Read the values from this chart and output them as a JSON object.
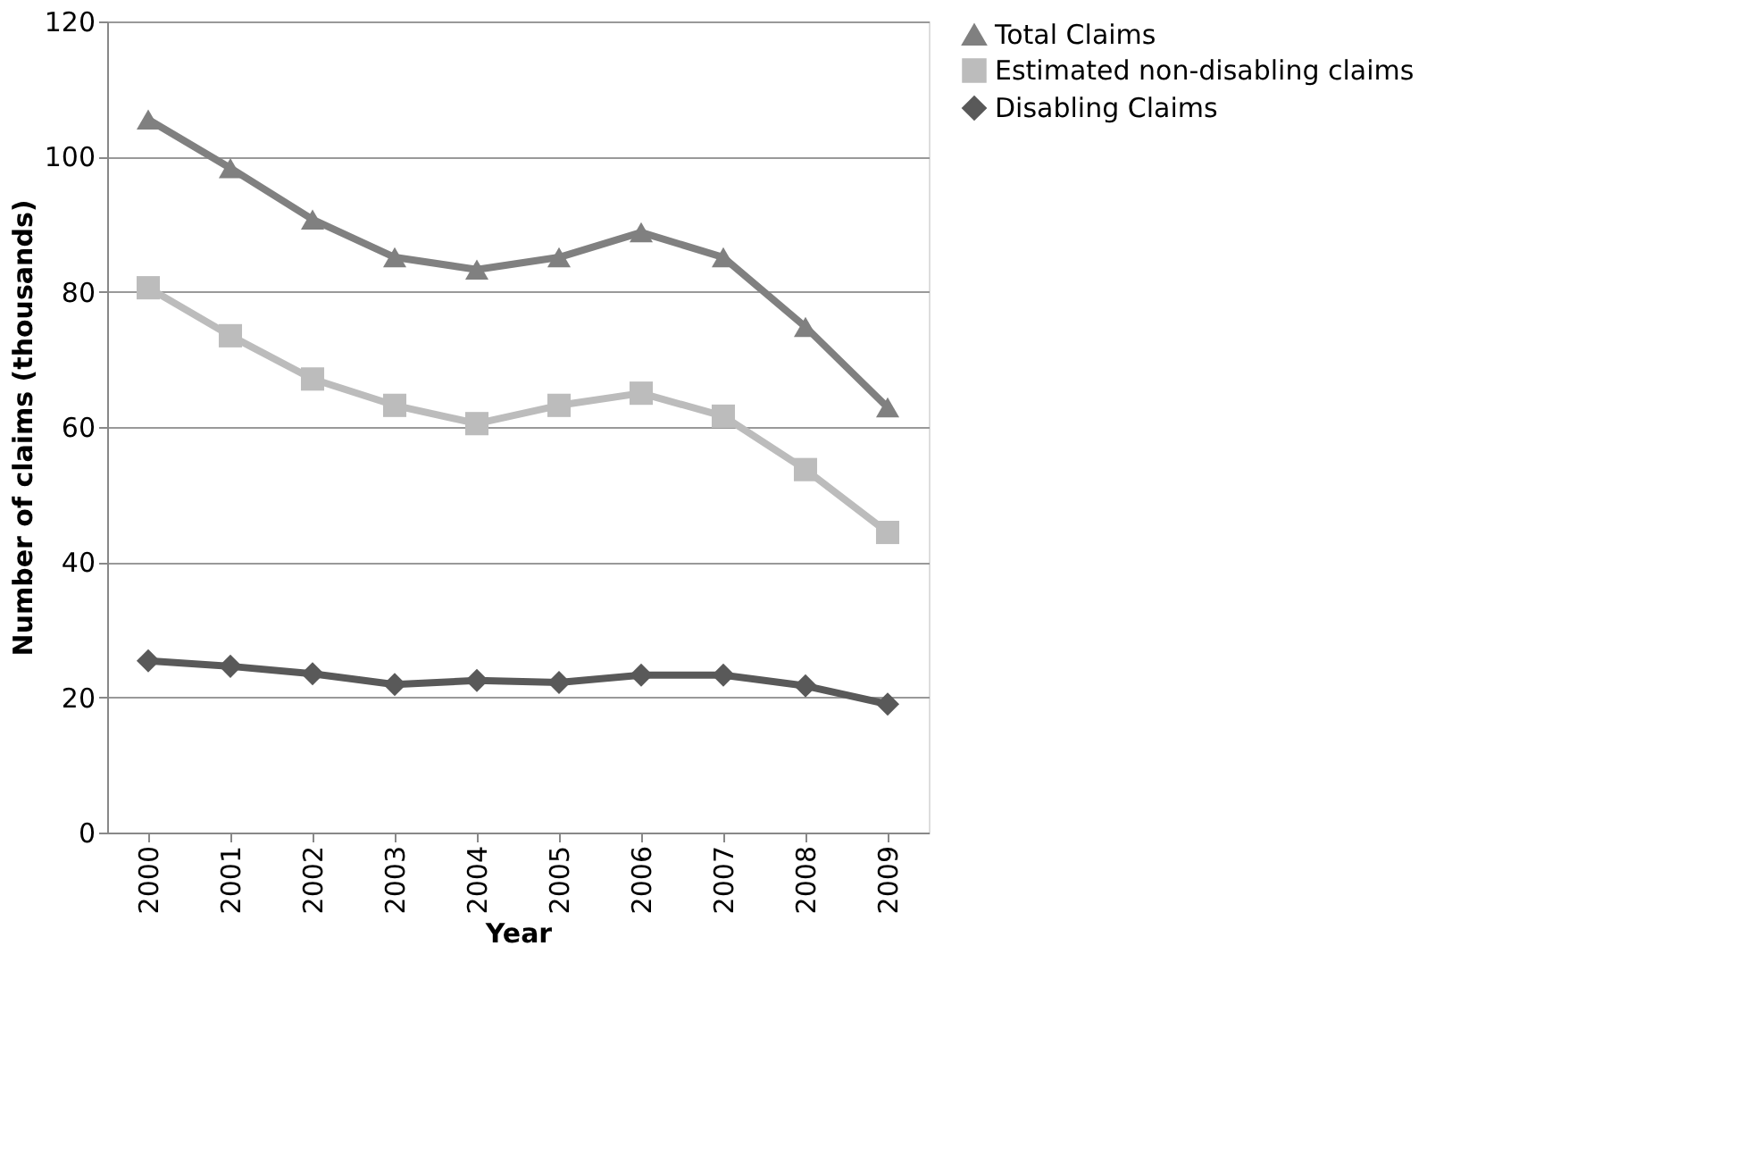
{
  "chart_data": {
    "type": "line",
    "xlabel": "Year",
    "ylabel": "Number of claims (thousands)",
    "categories": [
      "2000",
      "2001",
      "2002",
      "2003",
      "2004",
      "2005",
      "2006",
      "2007",
      "2008",
      "2009"
    ],
    "series": [
      {
        "name": "Total Claims",
        "color": "#808080",
        "marker": "triangle",
        "values": [
          105.5,
          98.3,
          90.7,
          85.1,
          83.3,
          85.1,
          88.8,
          85.1,
          74.8,
          62.9
        ]
      },
      {
        "name": "Estimated non-disabling claims",
        "color": "#bcbcbc",
        "marker": "square",
        "values": [
          80.6,
          73.5,
          67.1,
          63.2,
          60.5,
          63.2,
          65.0,
          61.6,
          53.7,
          44.4
        ]
      },
      {
        "name": "Disabling Claims",
        "color": "#595959",
        "marker": "diamond",
        "values": [
          25.4,
          24.6,
          23.5,
          21.9,
          22.5,
          22.2,
          23.3,
          23.3,
          21.7,
          19.0
        ]
      }
    ],
    "ylim": [
      0,
      120
    ],
    "yticks": [
      0,
      20,
      40,
      60,
      80,
      100,
      120
    ],
    "grid": "y",
    "legend": "right",
    "line_style": "solid"
  }
}
